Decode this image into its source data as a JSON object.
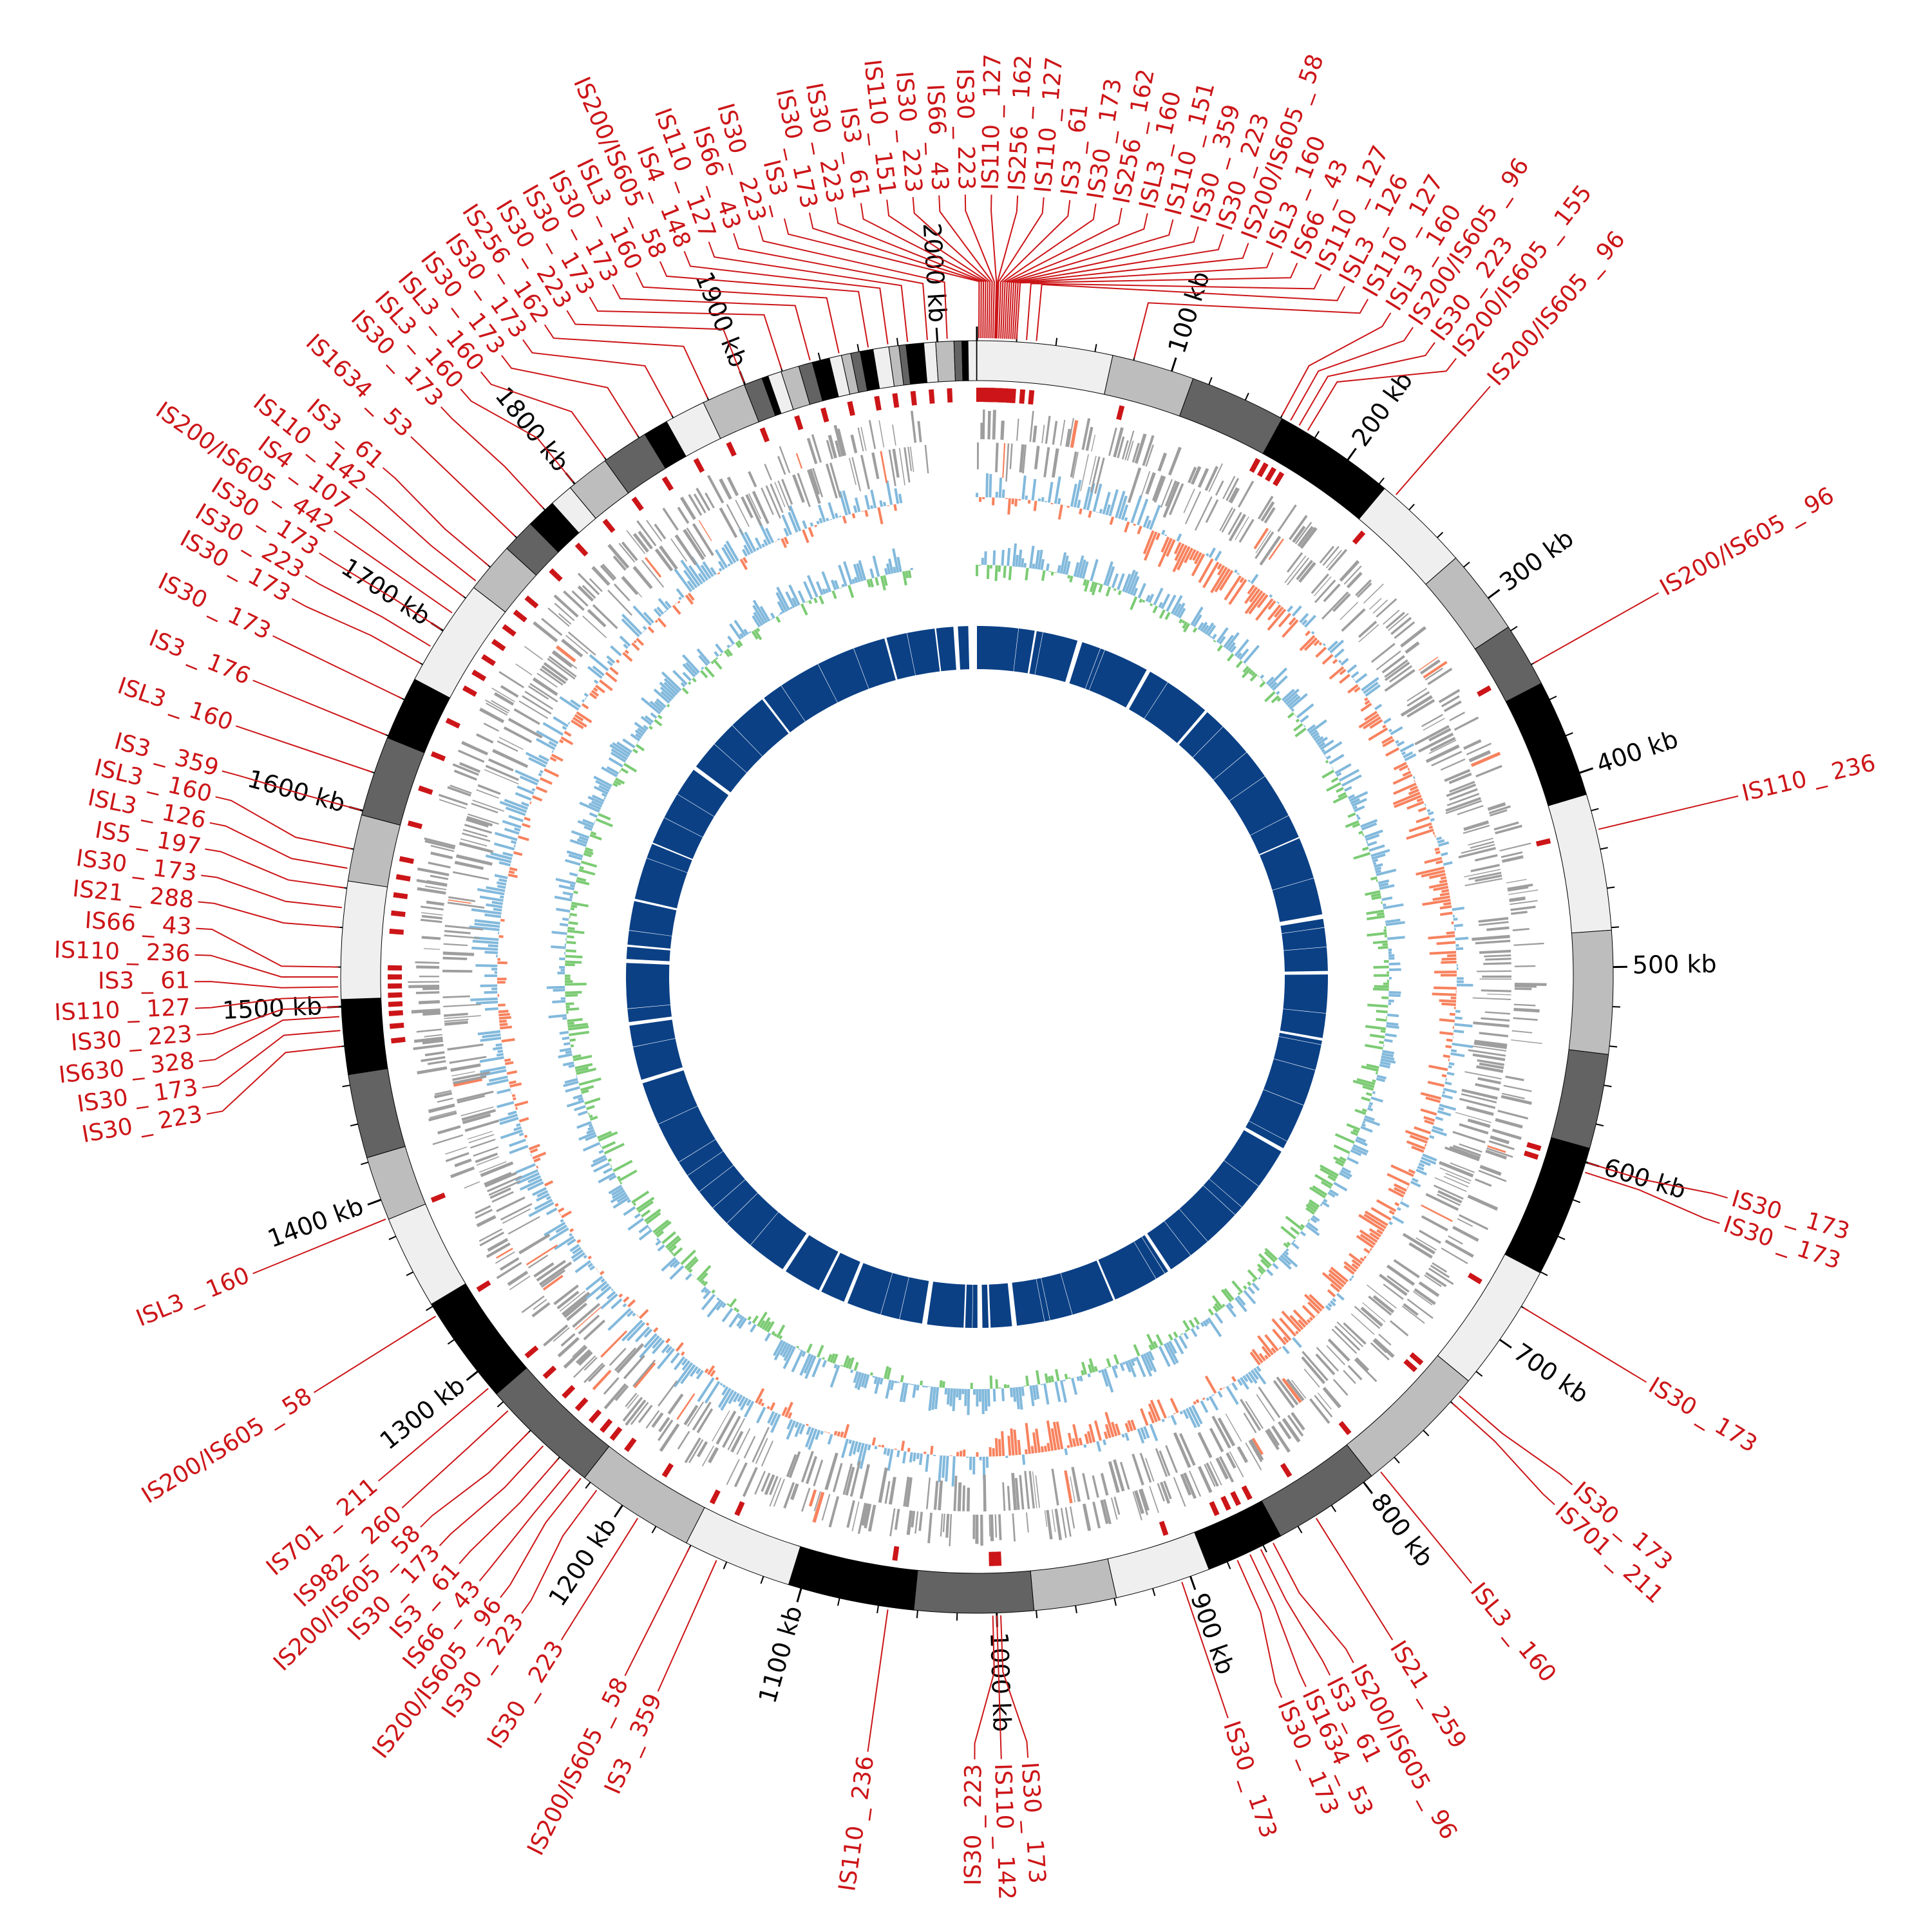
{
  "colors": {
    "is_red": "#cc1518",
    "gene_grey": "#9e9e9e",
    "skew_pos": "#82b9dc",
    "skew_neg": "#f7825e",
    "gc_pos": "#82b9dc",
    "gc_neg": "#7ccb74",
    "inner_ring": "#0b4085",
    "band_shades": [
      "#efefef",
      "#bdbdbd",
      "#636363",
      "#000000"
    ]
  },
  "kb_ticks": [
    {
      "kb": 100,
      "label": "100 kb"
    },
    {
      "kb": 200,
      "label": "200 kb"
    },
    {
      "kb": 300,
      "label": "300 kb"
    },
    {
      "kb": 400,
      "label": "400 kb"
    },
    {
      "kb": 500,
      "label": "500 kb"
    },
    {
      "kb": 600,
      "label": "600 kb"
    },
    {
      "kb": 700,
      "label": "700 kb"
    },
    {
      "kb": 800,
      "label": "800 kb"
    },
    {
      "kb": 900,
      "label": "900 kb"
    },
    {
      "kb": 1000,
      "label": "1000 kb"
    },
    {
      "kb": 1100,
      "label": "1100 kb"
    },
    {
      "kb": 1200,
      "label": "1200 kb"
    },
    {
      "kb": 1300,
      "label": "1300 kb"
    },
    {
      "kb": 1400,
      "label": "1400 kb"
    },
    {
      "kb": 1500,
      "label": "1500 kb"
    },
    {
      "kb": 1600,
      "label": "1600 kb"
    },
    {
      "kb": 1700,
      "label": "1700 kb"
    },
    {
      "kb": 1800,
      "label": "1800 kb"
    },
    {
      "kb": 1900,
      "label": "1900 kb"
    },
    {
      "kb": 2000,
      "label": "2000 kb"
    }
  ],
  "is_elements": [
    {
      "label": "IS3 _",
      "kb": 1
    },
    {
      "label": "IS30 _ 173",
      "kb": 2
    },
    {
      "label": "IS30 _ 223",
      "kb": 3
    },
    {
      "label": "IS3 _ 61",
      "kb": 4
    },
    {
      "label": "IS110 _ 151",
      "kb": 5
    },
    {
      "label": "IS30 _ 223",
      "kb": 6
    },
    {
      "label": "IS66 _ 43",
      "kb": 7
    },
    {
      "label": "IS30 _ 223",
      "kb": 8
    },
    {
      "label": "IS110 _ 127",
      "kb": 9
    },
    {
      "label": "IS256 _ 162",
      "kb": 9.5
    },
    {
      "label": "IS110 _ 127",
      "kb": 10
    },
    {
      "label": "IS3 _ 61",
      "kb": 11
    },
    {
      "label": "IS30 _ 173",
      "kb": 12
    },
    {
      "label": "IS256 _ 162",
      "kb": 13
    },
    {
      "label": "ISL3 _ 160",
      "kb": 14
    },
    {
      "label": "IS110 _ 151",
      "kb": 15
    },
    {
      "label": "IS30 _ 359",
      "kb": 16
    },
    {
      "label": "IS30 _ 223",
      "kb": 17
    },
    {
      "label": "IS200/IS605 _ 58",
      "kb": 18
    },
    {
      "label": "ISL3 _ 160",
      "kb": 19
    },
    {
      "label": "IS66 _ 43",
      "kb": 20
    },
    {
      "label": "IS110 _ 127",
      "kb": 25
    },
    {
      "label": "ISL3 _ 126",
      "kb": 30
    },
    {
      "label": "IS110 _ 127",
      "kb": 80
    },
    {
      "label": "ISL3 _ 160",
      "kb": 160
    },
    {
      "label": "IS200/IS605 _ 96",
      "kb": 165
    },
    {
      "label": "IS30 _ 223",
      "kb": 170
    },
    {
      "label": "IS200/IS605 _ 155",
      "kb": 175
    },
    {
      "label": "IS200/IS605 _ 96",
      "kb": 230
    },
    {
      "label": "IS200/IS605 _ 96",
      "kb": 340
    },
    {
      "label": "IS110 _ 236",
      "kb": 430
    },
    {
      "label": "IS30 _ 173",
      "kb": 600
    },
    {
      "label": "IS30 _ 173",
      "kb": 605
    },
    {
      "label": "IS30 _ 173",
      "kb": 680
    },
    {
      "label": "IS30 _ 173",
      "kb": 735
    },
    {
      "label": "IS701 _ 211",
      "kb": 740
    },
    {
      "label": "ISL3 _ 160",
      "kb": 790
    },
    {
      "label": "IS21 _ 259",
      "kb": 830
    },
    {
      "label": "IS200/IS605 _ 96",
      "kb": 855
    },
    {
      "label": "IS3 _ 61",
      "kb": 862
    },
    {
      "label": "IS1634 _ 53",
      "kb": 868
    },
    {
      "label": "IS30 _ 173",
      "kb": 875
    },
    {
      "label": "IS30 _ 173",
      "kb": 905
    },
    {
      "label": "IS30 _ 173",
      "kb": 998
    },
    {
      "label": "IS110 _ 142",
      "kb": 1000
    },
    {
      "label": "IS30 _ 223",
      "kb": 1002
    },
    {
      "label": "IS110 _ 236",
      "kb": 1055
    },
    {
      "label": "IS3 _ 359",
      "kb": 1145
    },
    {
      "label": "IS200/IS605 _ 58",
      "kb": 1160
    },
    {
      "label": "IS30 _ 223",
      "kb": 1190
    },
    {
      "label": "IS30 _ 223",
      "kb": 1215
    },
    {
      "label": "IS200/IS605 _ 96",
      "kb": 1225
    },
    {
      "label": "IS66 _ 43",
      "kb": 1232
    },
    {
      "label": "IS3 _ 61",
      "kb": 1240
    },
    {
      "label": "IS30 _ 173",
      "kb": 1250
    },
    {
      "label": "IS200/IS605 _ 58",
      "kb": 1260
    },
    {
      "label": "IS982 _ 260",
      "kb": 1275
    },
    {
      "label": "IS701 _ 211",
      "kb": 1290
    },
    {
      "label": "IS200/IS605 _ 58",
      "kb": 1335
    },
    {
      "label": "ISL3 _ 160",
      "kb": 1390
    },
    {
      "label": "IS30 _ 223",
      "kb": 1480
    },
    {
      "label": "IS30 _ 173",
      "kb": 1488
    },
    {
      "label": "IS630 _ 328",
      "kb": 1495
    },
    {
      "label": "IS30 _ 223",
      "kb": 1500
    },
    {
      "label": "IS110 _ 127",
      "kb": 1505
    },
    {
      "label": "IS3 _ 61",
      "kb": 1510
    },
    {
      "label": "IS110 _ 236",
      "kb": 1515
    },
    {
      "label": "IS66 _ 43",
      "kb": 1520
    },
    {
      "label": "IS21 _ 288",
      "kb": 1540
    },
    {
      "label": "IS30 _ 173",
      "kb": 1550
    },
    {
      "label": "IS5 _ 197",
      "kb": 1560
    },
    {
      "label": "ISL3 _ 126",
      "kb": 1570
    },
    {
      "label": "ISL3 _ 160",
      "kb": 1580
    },
    {
      "label": "IS3 _ 359",
      "kb": 1600
    },
    {
      "label": "ISL3 _ 160",
      "kb": 1620
    },
    {
      "label": "IS3 _ 176",
      "kb": 1640
    },
    {
      "label": "IS30 _ 173",
      "kb": 1660
    },
    {
      "label": "IS30 _ 173",
      "kb": 1680
    },
    {
      "label": "IS30 _ 223",
      "kb": 1690
    },
    {
      "label": "IS30 _ 173",
      "kb": 1700
    },
    {
      "label": "IS200/IS605 _ 442",
      "kb": 1710
    },
    {
      "label": "IS4 _ 107",
      "kb": 1720
    },
    {
      "label": "IS110 _ 142",
      "kb": 1730
    },
    {
      "label": "IS3 _ 61",
      "kb": 1740
    },
    {
      "label": "IS1634 _ 53",
      "kb": 1760
    },
    {
      "label": "IS30 _ 173",
      "kb": 1780
    },
    {
      "label": "ISL3 _ 160",
      "kb": 1800
    },
    {
      "label": "ISL3 _ 160",
      "kb": 1820
    },
    {
      "label": "IS30 _ 173",
      "kb": 1840
    },
    {
      "label": "IS30 _ 173",
      "kb": 1860
    },
    {
      "label": "IS256 _ 162",
      "kb": 1880
    },
    {
      "label": "IS30 _ 223",
      "kb": 1900
    },
    {
      "label": "IS30 _ 173",
      "kb": 1920
    },
    {
      "label": "IS30 _ 173",
      "kb": 1935
    },
    {
      "label": "ISL3 _ 160",
      "kb": 1950
    },
    {
      "label": "IS200/IS605 _ 58",
      "kb": 1965
    },
    {
      "label": "IS4 _ 148",
      "kb": 1975
    },
    {
      "label": "IS110 _ 127",
      "kb": 1985
    },
    {
      "label": "IS66 _ 43",
      "kb": 1995
    },
    {
      "label": "IS30 _ 223",
      "kb": 2005
    }
  ]
}
